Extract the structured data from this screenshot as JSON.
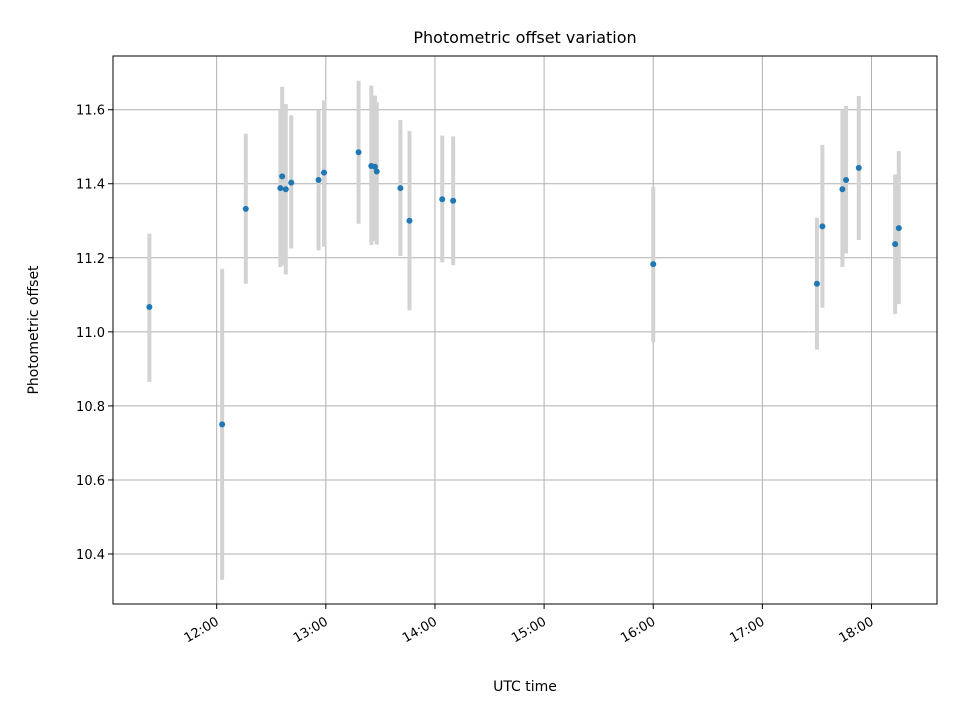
{
  "chart_data": {
    "type": "scatter",
    "title": "Photometric offset variation",
    "xlabel": "UTC time",
    "ylabel": "Photometric offset",
    "xlim": [
      "11:03",
      "18:36"
    ],
    "ylim": [
      10.265,
      11.745
    ],
    "grid": true,
    "x_ticks": [
      "12:00",
      "13:00",
      "14:00",
      "15:00",
      "16:00",
      "17:00",
      "18:00"
    ],
    "y_ticks": [
      10.4,
      10.6,
      10.8,
      11.0,
      11.2,
      11.4,
      11.6
    ],
    "marker_color": "#1f77b4",
    "errorbar_color": "#d3d3d3",
    "points": [
      {
        "x": "11:23",
        "y": 11.067,
        "lo": 10.865,
        "hi": 11.265
      },
      {
        "x": "12:03",
        "y": 10.75,
        "lo": 10.33,
        "hi": 11.17
      },
      {
        "x": "12:16",
        "y": 11.332,
        "lo": 11.13,
        "hi": 11.535
      },
      {
        "x": "12:35",
        "y": 11.388,
        "lo": 11.175,
        "hi": 11.6
      },
      {
        "x": "12:36",
        "y": 11.42,
        "lo": 11.18,
        "hi": 11.662
      },
      {
        "x": "12:38",
        "y": 11.385,
        "lo": 11.155,
        "hi": 11.615
      },
      {
        "x": "12:41",
        "y": 11.403,
        "lo": 11.225,
        "hi": 11.585
      },
      {
        "x": "12:56",
        "y": 11.41,
        "lo": 11.22,
        "hi": 11.598
      },
      {
        "x": "12:59",
        "y": 11.43,
        "lo": 11.23,
        "hi": 11.625
      },
      {
        "x": "13:18",
        "y": 11.485,
        "lo": 11.292,
        "hi": 11.678
      },
      {
        "x": "13:25",
        "y": 11.448,
        "lo": 11.235,
        "hi": 11.665
      },
      {
        "x": "13:27",
        "y": 11.446,
        "lo": 11.245,
        "hi": 11.638
      },
      {
        "x": "13:28",
        "y": 11.433,
        "lo": 11.236,
        "hi": 11.62
      },
      {
        "x": "13:41",
        "y": 11.388,
        "lo": 11.205,
        "hi": 11.572
      },
      {
        "x": "13:46",
        "y": 11.3,
        "lo": 11.058,
        "hi": 11.542
      },
      {
        "x": "14:04",
        "y": 11.358,
        "lo": 11.188,
        "hi": 11.53
      },
      {
        "x": "14:10",
        "y": 11.354,
        "lo": 11.18,
        "hi": 11.528
      },
      {
        "x": "16:00",
        "y": 11.183,
        "lo": 10.972,
        "hi": 11.392
      },
      {
        "x": "17:30",
        "y": 11.13,
        "lo": 10.952,
        "hi": 11.308
      },
      {
        "x": "17:33",
        "y": 11.285,
        "lo": 11.065,
        "hi": 11.505
      },
      {
        "x": "17:44",
        "y": 11.385,
        "lo": 11.175,
        "hi": 11.6
      },
      {
        "x": "17:46",
        "y": 11.41,
        "lo": 11.212,
        "hi": 11.61
      },
      {
        "x": "17:53",
        "y": 11.443,
        "lo": 11.248,
        "hi": 11.637
      },
      {
        "x": "18:13",
        "y": 11.237,
        "lo": 11.048,
        "hi": 11.425
      },
      {
        "x": "18:15",
        "y": 11.28,
        "lo": 11.075,
        "hi": 11.488
      }
    ]
  }
}
